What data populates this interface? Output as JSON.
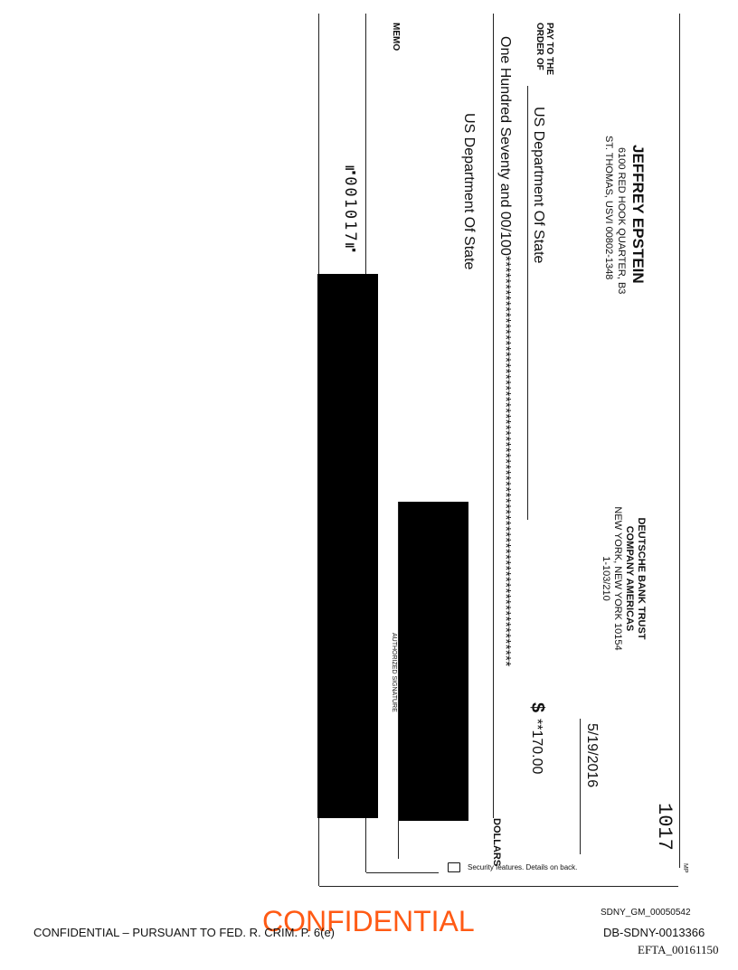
{
  "check": {
    "account_holder": "JEFFREY EPSTEIN",
    "address_line1": "6100 RED HOOK QUARTER, B3",
    "address_line2": "ST. THOMAS, USVI 00802-1348",
    "bank_name_line1": "DEUTSCHE BANK TRUST",
    "bank_name_line2": "COMPANY AMERICAS",
    "bank_city": "NEW YORK, NEW YORK 10154",
    "bank_routing_fraction": "1-103/210",
    "check_number": "1017",
    "date": "5/19/2016",
    "pay_to_label_line1": "PAY TO THE",
    "pay_to_label_line2": "ORDER OF",
    "payee": "US Department Of State",
    "dollar_sign": "$",
    "amount": "**170.00",
    "amount_words": "One Hundred Seventy and 00/100*************************************************************************",
    "dollars_label": "DOLLARS",
    "payee_address": "US Department Of State",
    "memo_label": "MEMO",
    "signature_label": "AUTHORIZED SIGNATURE",
    "micr_line": "⑈001017⑈",
    "mp_mark": "MP",
    "security_note": "Security features. Details on back.",
    "security_icon": "padlock-icon"
  },
  "footer": {
    "bates_gm": "SDNY_GM_00050542",
    "confidential_stamp": "CONFIDENTIAL",
    "confidential_notice": "CONFIDENTIAL – PURSUANT TO FED. R. CRIM. P. 6(e)",
    "bates_db": "DB-SDNY-0013366",
    "bates_efta": "EFTA_00161150",
    "stamp_color": "#ff5a14"
  }
}
